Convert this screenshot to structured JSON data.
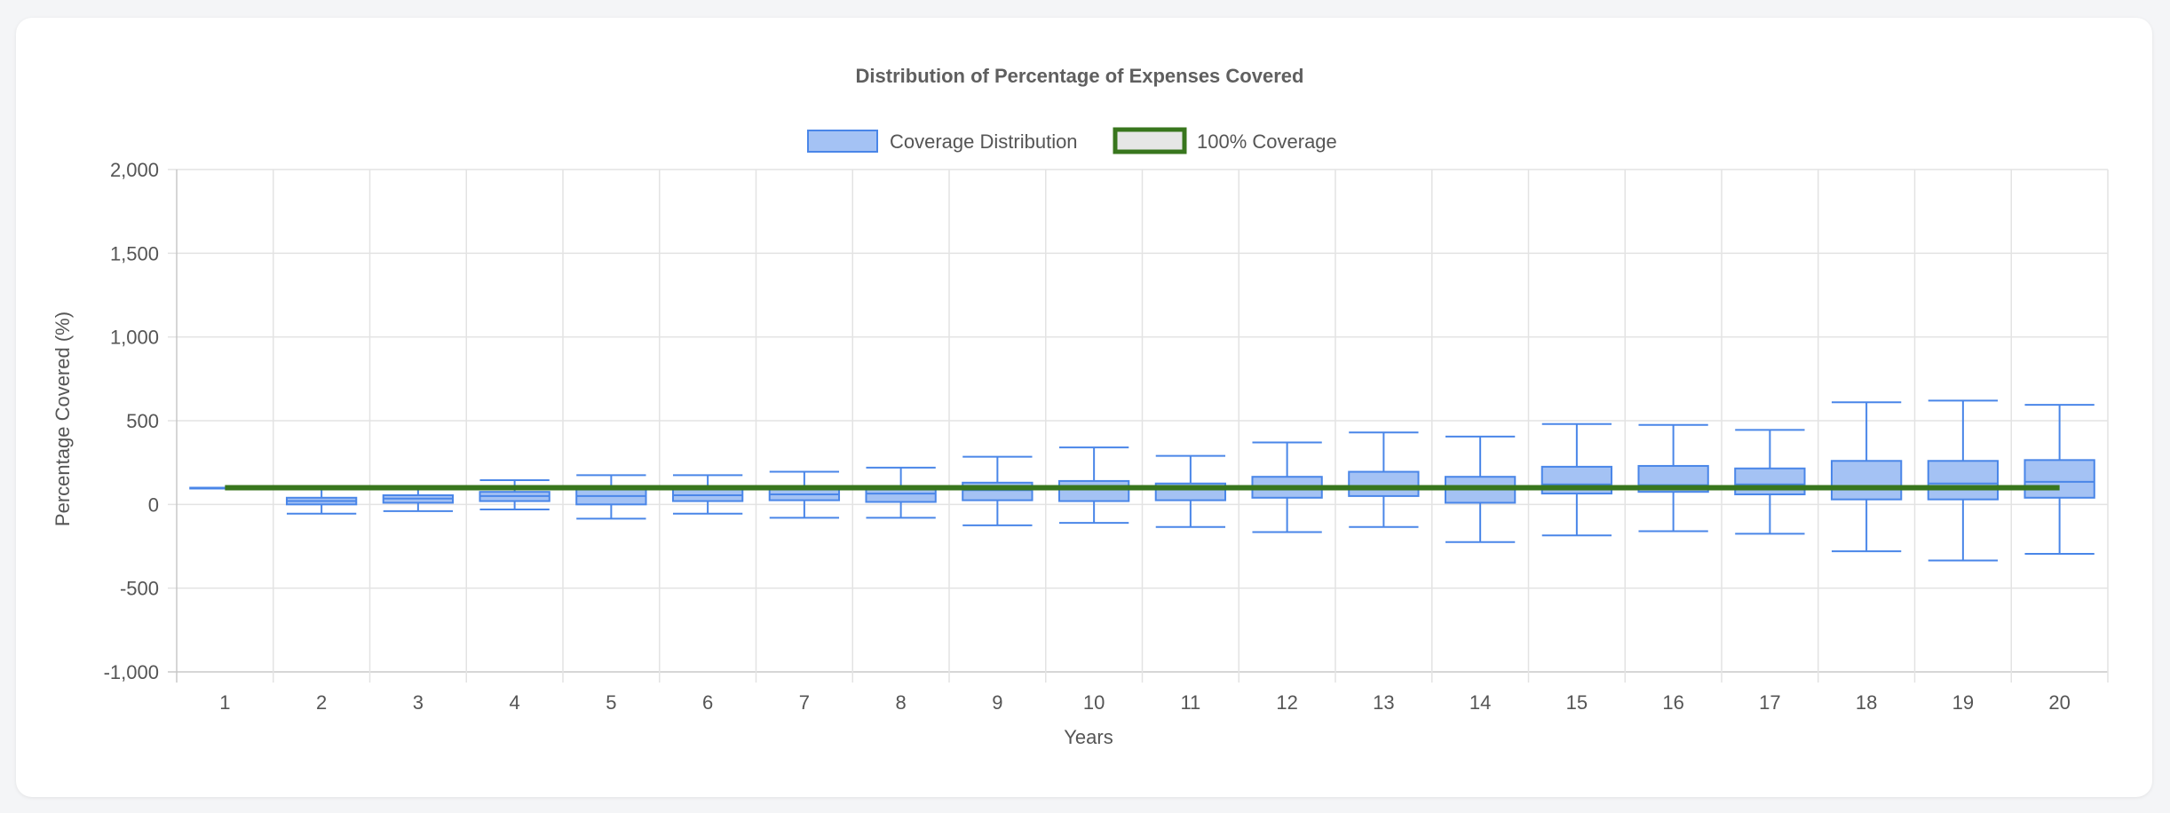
{
  "chart_data": {
    "type": "boxplot",
    "title": "Distribution of Percentage of Expenses Covered",
    "xlabel": "Years",
    "ylabel": "Percentage Covered (%)",
    "ylim": [
      -1000,
      2000
    ],
    "yticks": [
      -1000,
      -500,
      0,
      500,
      1000,
      1500,
      2000
    ],
    "grid": true,
    "legend_position": "top-center",
    "categories": [
      "1",
      "2",
      "3",
      "4",
      "5",
      "6",
      "7",
      "8",
      "9",
      "10",
      "11",
      "12",
      "13",
      "14",
      "15",
      "16",
      "17",
      "18",
      "19",
      "20"
    ],
    "series": [
      {
        "name": "Coverage Distribution",
        "color": "#a4c2f4",
        "border_color": "#4a86e8",
        "boxes": [
          {
            "x": "1",
            "min": 100,
            "q1": 100,
            "median": 100,
            "q3": 100,
            "max": 100
          },
          {
            "x": "2",
            "min": -55,
            "q1": 0,
            "median": 20,
            "q3": 40,
            "max": 95
          },
          {
            "x": "3",
            "min": -40,
            "q1": 10,
            "median": 35,
            "q3": 55,
            "max": 110
          },
          {
            "x": "4",
            "min": -30,
            "q1": 20,
            "median": 50,
            "q3": 75,
            "max": 145
          },
          {
            "x": "5",
            "min": -85,
            "q1": 0,
            "median": 50,
            "q3": 90,
            "max": 175
          },
          {
            "x": "6",
            "min": -55,
            "q1": 20,
            "median": 55,
            "q3": 95,
            "max": 175
          },
          {
            "x": "7",
            "min": -80,
            "q1": 25,
            "median": 60,
            "q3": 100,
            "max": 195
          },
          {
            "x": "8",
            "min": -80,
            "q1": 15,
            "median": 65,
            "q3": 110,
            "max": 220
          },
          {
            "x": "9",
            "min": -125,
            "q1": 25,
            "median": 85,
            "q3": 130,
            "max": 285
          },
          {
            "x": "10",
            "min": -110,
            "q1": 20,
            "median": 90,
            "q3": 140,
            "max": 340
          },
          {
            "x": "11",
            "min": -135,
            "q1": 25,
            "median": 90,
            "q3": 125,
            "max": 290
          },
          {
            "x": "12",
            "min": -165,
            "q1": 40,
            "median": 100,
            "q3": 165,
            "max": 370
          },
          {
            "x": "13",
            "min": -135,
            "q1": 50,
            "median": 105,
            "q3": 195,
            "max": 430
          },
          {
            "x": "14",
            "min": -225,
            "q1": 10,
            "median": 100,
            "q3": 165,
            "max": 405
          },
          {
            "x": "15",
            "min": -185,
            "q1": 65,
            "median": 120,
            "q3": 225,
            "max": 480
          },
          {
            "x": "16",
            "min": -160,
            "q1": 75,
            "median": 115,
            "q3": 230,
            "max": 475
          },
          {
            "x": "17",
            "min": -175,
            "q1": 60,
            "median": 120,
            "q3": 215,
            "max": 445
          },
          {
            "x": "18",
            "min": -280,
            "q1": 30,
            "median": 100,
            "q3": 260,
            "max": 610
          },
          {
            "x": "19",
            "min": -335,
            "q1": 30,
            "median": 125,
            "q3": 260,
            "max": 620
          },
          {
            "x": "20",
            "min": -295,
            "q1": 40,
            "median": 135,
            "q3": 265,
            "max": 595
          }
        ]
      },
      {
        "name": "100% Coverage",
        "type": "line",
        "color": "#38761d",
        "values": [
          100,
          100,
          100,
          100,
          100,
          100,
          100,
          100,
          100,
          100,
          100,
          100,
          100,
          100,
          100,
          100,
          100,
          100,
          100,
          100
        ]
      }
    ]
  }
}
